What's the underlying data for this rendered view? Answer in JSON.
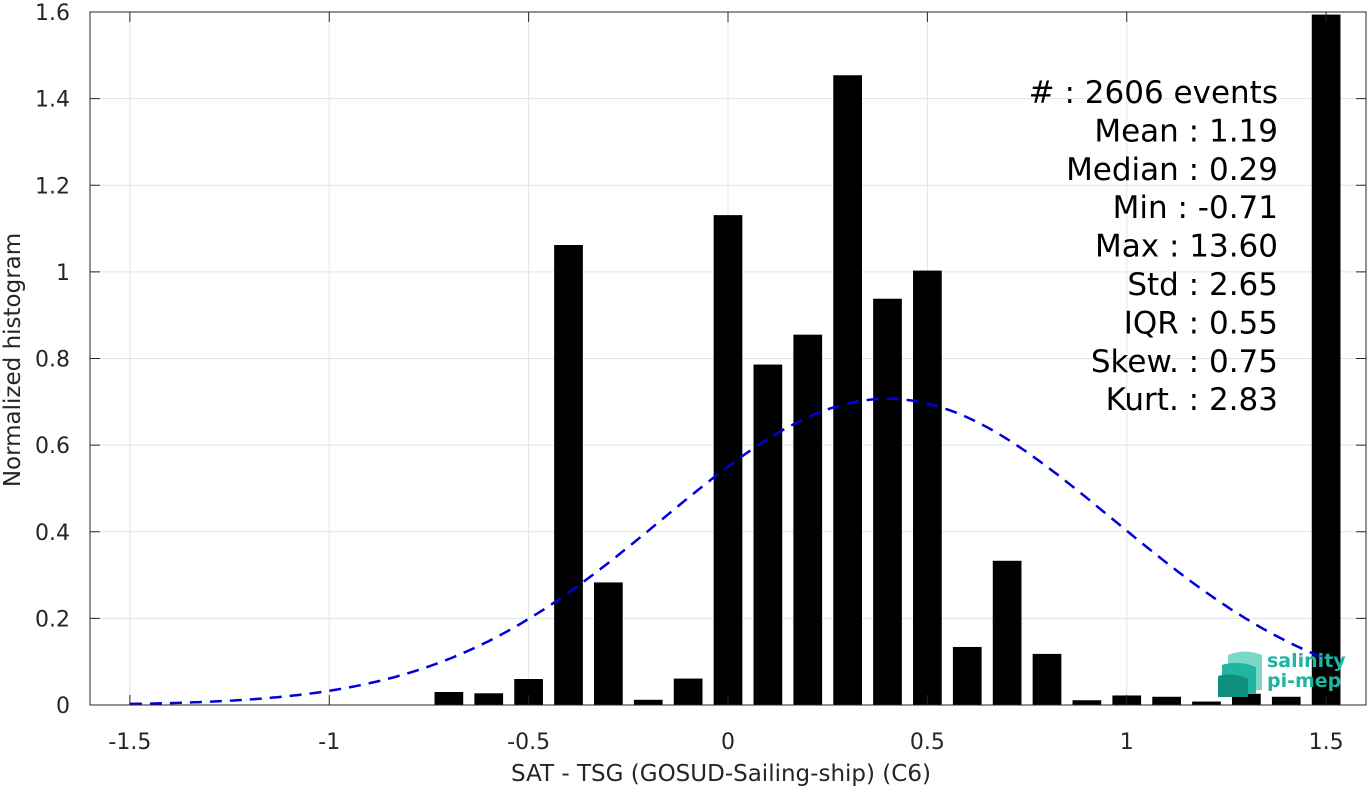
{
  "chart_data": {
    "type": "bar",
    "xlabel": "SAT - TSG (GOSUD-Sailing-ship) (C6)",
    "ylabel": "Normalized histogram",
    "xlim": [
      -1.6,
      1.6
    ],
    "ylim": [
      0,
      1.6
    ],
    "xticks": [
      -1.5,
      -1,
      -0.5,
      0,
      0.5,
      1,
      1.5
    ],
    "xtick_labels": [
      "-1.5",
      "-1",
      "-0.5",
      "0",
      "0.5",
      "1",
      "1.5"
    ],
    "yticks": [
      0,
      0.2,
      0.4,
      0.6,
      0.8,
      1,
      1.2,
      1.4,
      1.6
    ],
    "ytick_labels": [
      "0",
      "0.2",
      "0.4",
      "0.6",
      "0.8",
      "1",
      "1.2",
      "1.4",
      "1.6"
    ],
    "grid": true,
    "bar_color": "#000000",
    "bin_width": 0.1,
    "x": [
      -0.7,
      -0.6,
      -0.5,
      -0.4,
      -0.3,
      -0.2,
      -0.1,
      0.0,
      0.1,
      0.2,
      0.3,
      0.4,
      0.5,
      0.6,
      0.7,
      0.8,
      0.9,
      1.0,
      1.1,
      1.2,
      1.3,
      1.4,
      1.5
    ],
    "values": [
      0.03,
      0.027,
      0.06,
      1.062,
      0.283,
      0.012,
      0.061,
      1.131,
      0.786,
      0.855,
      1.454,
      0.938,
      1.003,
      0.134,
      0.333,
      0.118,
      0.011,
      0.022,
      0.019,
      0.008,
      0.026,
      0.019,
      1.594
    ],
    "fit": {
      "type": "gaussian",
      "color": "#0000dd",
      "style": "dashed",
      "x_range": [
        -1.5,
        1.5
      ],
      "peak_x": 0.4,
      "peak_y": 0.707,
      "sigma": 0.565
    },
    "stats": [
      "#  : 2606 events",
      "Mean : 1.19",
      "Median : 0.29",
      "Min : -0.71",
      "Max : 13.60",
      "Std : 2.65",
      "IQR : 0.55",
      "Skew. : 0.75",
      "Kurt. : 2.83"
    ]
  },
  "logo": {
    "line1": "salinity",
    "line2": "pi-mep",
    "colors": [
      "#1fb5a0",
      "#0f8f7c",
      "#7ad8c8"
    ]
  }
}
